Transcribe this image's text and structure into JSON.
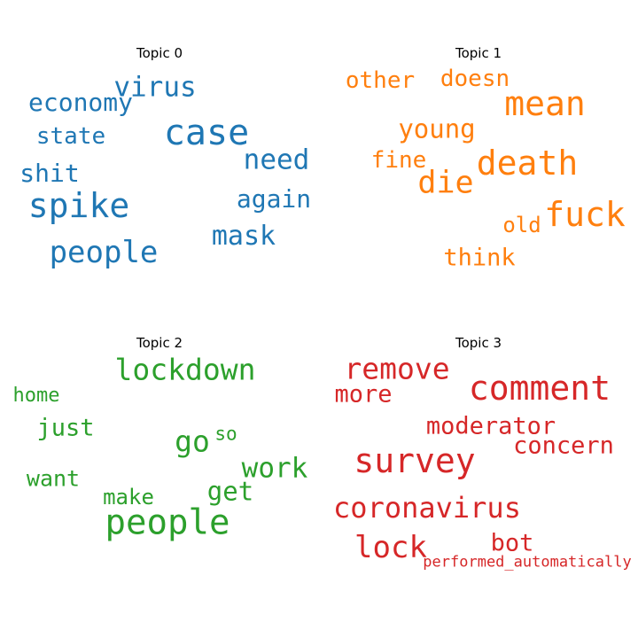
{
  "chart_data": {
    "type": "wordcloud",
    "panels": [
      {
        "title": "Topic 0",
        "color": "#1f77b4",
        "words": [
          "case",
          "spike",
          "people",
          "virus",
          "need",
          "economy",
          "again",
          "mask",
          "shit",
          "state"
        ]
      },
      {
        "title": "Topic 1",
        "color": "#ff7f0e",
        "words": [
          "fuck",
          "death",
          "mean",
          "die",
          "young",
          "doesn",
          "other",
          "fine",
          "think",
          "old"
        ]
      },
      {
        "title": "Topic 2",
        "color": "#2ca02c",
        "words": [
          "people",
          "lockdown",
          "work",
          "go",
          "get",
          "just",
          "want",
          "make",
          "home",
          "so"
        ]
      },
      {
        "title": "Topic 3",
        "color": "#d62728",
        "words": [
          "comment",
          "survey",
          "coronavirus",
          "remove",
          "moderator",
          "concern",
          "lock",
          "more",
          "bot",
          "performed_automatically"
        ]
      }
    ]
  }
}
